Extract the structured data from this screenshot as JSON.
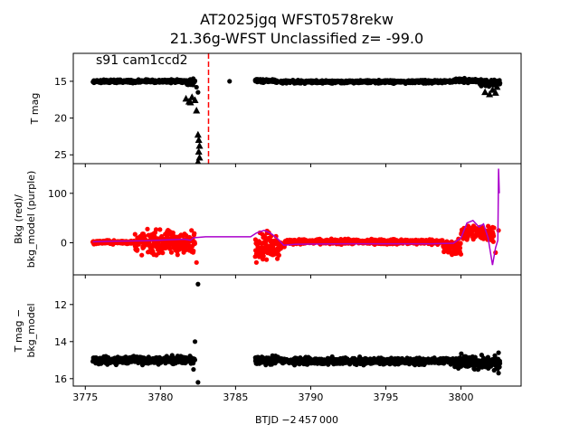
{
  "chart_data": {
    "type": "scatter",
    "title_line1": "AT2025jgq  WFST0578rekw",
    "title_line2": "21.36g-WFST Unclassified z= -99.0",
    "xlabel": "BTJD −2 457 000",
    "xlim": [
      3774.2,
      3804.0
    ],
    "xticks": [
      3775,
      3780,
      3785,
      3790,
      3795,
      3800
    ],
    "vline": {
      "x": 3783.2,
      "color": "#ff0000",
      "style": "dashed"
    },
    "panels": [
      {
        "ylabel": "T mag",
        "ylim": [
          26.2,
          11.2
        ],
        "inverted": true,
        "yticks": [
          15,
          20,
          25
        ],
        "annotation": "s91 cam1ccd2",
        "series": [
          {
            "kind": "dense_points",
            "color": "#000000",
            "marker": "circle",
            "segments": [
              {
                "x": [
                  3775.5,
                  3781.7
                ],
                "y_center": 15.0,
                "y_spread": 0.3
              },
              {
                "x": [
                  3781.7,
                  3782.3
                ],
                "y_center": 15.1,
                "y_spread": 0.6
              },
              {
                "x": [
                  3786.3,
                  3787.8
                ],
                "y_center": 14.95,
                "y_spread": 0.3
              },
              {
                "x": [
                  3788.0,
                  3799.5
                ],
                "y_center": 15.05,
                "y_spread": 0.3
              },
              {
                "x": [
                  3799.5,
                  3801.2
                ],
                "y_center": 14.9,
                "y_spread": 0.45
              },
              {
                "x": [
                  3801.2,
                  3802.6
                ],
                "y_center": 15.2,
                "y_spread": 0.7
              }
            ],
            "points": [
              [
                3784.6,
                15.0
              ],
              [
                3782.4,
                15.8
              ],
              [
                3782.5,
                16.5
              ]
            ]
          },
          {
            "kind": "points",
            "color": "#000000",
            "marker": "triangle",
            "points": [
              [
                3782.4,
                19.0
              ],
              [
                3781.7,
                17.4
              ],
              [
                3781.9,
                17.8
              ],
              [
                3782.1,
                17.2
              ],
              [
                3782.3,
                17.6
              ],
              [
                3782.0,
                17.9
              ],
              [
                3782.5,
                22.3
              ],
              [
                3782.55,
                23.0
              ],
              [
                3782.6,
                23.8
              ],
              [
                3782.55,
                24.6
              ],
              [
                3782.6,
                25.4
              ],
              [
                3782.5,
                26.0
              ],
              [
                3801.6,
                16.5
              ],
              [
                3801.9,
                16.8
              ],
              [
                3802.1,
                16.2
              ],
              [
                3802.3,
                16.6
              ],
              [
                3802.4,
                15.8
              ],
              [
                3802.5,
                15.2
              ]
            ]
          }
        ]
      },
      {
        "ylabel": "Bkg (red)/\nbkg_model (purple)",
        "ylim": [
          -65,
          160
        ],
        "yticks": [
          0,
          100
        ],
        "series": [
          {
            "kind": "dense_points",
            "color": "#ff0000",
            "marker": "circle",
            "segments": [
              {
                "x": [
                  3775.5,
                  3778.3
                ],
                "y_center": 1.0,
                "y_spread": 5
              },
              {
                "x": [
                  3778.3,
                  3782.3
                ],
                "y_center": 0.0,
                "y_spread": 34
              },
              {
                "x": [
                  3786.3,
                  3787.9
                ],
                "y_center": -5.0,
                "y_spread": 40
              },
              {
                "x": [
                  3787.9,
                  3788.3
                ],
                "y_center": -5.0,
                "y_spread": 12
              },
              {
                "x": [
                  3788.3,
                  3798.8
                ],
                "y_center": 2.0,
                "y_spread": 7
              },
              {
                "x": [
                  3798.8,
                  3800.0
                ],
                "y_center": -10.0,
                "y_spread": 22
              },
              {
                "x": [
                  3800.0,
                  3802.2
                ],
                "y_center": 20.0,
                "y_spread": 22
              }
            ],
            "points": [
              [
                3782.4,
                -40
              ],
              [
                3802.3,
                -20
              ],
              [
                3802.5,
                25
              ]
            ]
          },
          {
            "kind": "line",
            "color": "#aa00cc",
            "points": [
              [
                3775.5,
                2
              ],
              [
                3777,
                3
              ],
              [
                3779,
                4
              ],
              [
                3780.5,
                6
              ],
              [
                3781.6,
                7
              ],
              [
                3782.0,
                5
              ],
              [
                3782.2,
                10
              ],
              [
                3783,
                12
              ],
              [
                3786.0,
                12
              ],
              [
                3786.4,
                20
              ],
              [
                3786.9,
                25
              ],
              [
                3787.3,
                20
              ],
              [
                3787.8,
                8
              ],
              [
                3788.2,
                -5
              ],
              [
                3789,
                -3
              ],
              [
                3792,
                -2
              ],
              [
                3795,
                -2
              ],
              [
                3798,
                -2
              ],
              [
                3799.5,
                -1
              ],
              [
                3800.0,
                10
              ],
              [
                3800.4,
                40
              ],
              [
                3800.8,
                45
              ],
              [
                3801.2,
                32
              ],
              [
                3801.5,
                38
              ],
              [
                3801.8,
                10
              ],
              [
                3802.1,
                -45
              ],
              [
                3802.3,
                -10
              ],
              [
                3802.45,
                5
              ],
              [
                3802.5,
                150
              ],
              [
                3802.55,
                100
              ]
            ]
          }
        ]
      },
      {
        "ylabel": "T mag −\nbkg_model",
        "ylim": [
          16.4,
          10.4
        ],
        "inverted": true,
        "yticks": [
          12,
          14,
          16
        ],
        "series": [
          {
            "kind": "dense_points",
            "color": "#000000",
            "marker": "circle",
            "segments": [
              {
                "x": [
                  3775.5,
                  3782.3
                ],
                "y_center": 15.0,
                "y_spread": 0.3
              },
              {
                "x": [
                  3786.3,
                  3787.9
                ],
                "y_center": 15.0,
                "y_spread": 0.3
              },
              {
                "x": [
                  3788.0,
                  3799.5
                ],
                "y_center": 15.05,
                "y_spread": 0.25
              },
              {
                "x": [
                  3799.5,
                  3802.6
                ],
                "y_center": 15.15,
                "y_spread": 0.6
              }
            ],
            "points": [
              [
                3782.5,
                10.9
              ],
              [
                3782.3,
                14.0
              ],
              [
                3782.5,
                16.2
              ],
              [
                3782.2,
                15.5
              ],
              [
                3802.5,
                14.6
              ],
              [
                3802.5,
                15.7
              ]
            ]
          }
        ]
      }
    ]
  }
}
